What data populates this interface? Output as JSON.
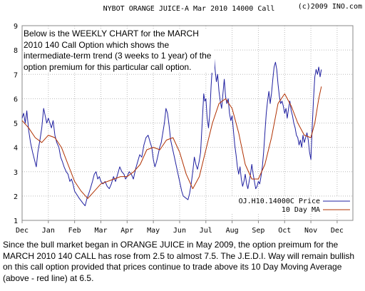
{
  "header": {
    "title": "NYBOT ORANGE JUICE-A Mar 2010 14000 Call",
    "copyright": "(c)2009 INO.com"
  },
  "overlay_note": "Below is the WEEKLY CHART for the MARCH 2010 140 Call Option which shows the intermediate-term trend (3 weeks to 1 year) of the option premium for this particular call option.",
  "caption": "Since the bull market began in ORANGE JUICE in May 2009, the option preimum for the MARCH 2010 140 CALL has rose from 2.5 to almost 7.5. The J.E.D.I. Way will remain bullish on this call option provided that prices continue to trade above its 10 Day Moving Average (above - red line) at 6.5.",
  "colors": {
    "price": "#2020a0",
    "ma": "#b03000",
    "grid": "#bbbbbb",
    "axis": "#888888"
  },
  "chart_data": {
    "type": "line",
    "x_tick_labels": [
      "Dec",
      "Jan",
      "Feb",
      "Mar",
      "Apr",
      "May",
      "Jun",
      "Jul",
      "Aug",
      "Sep",
      "Oct",
      "Nov",
      "Dec"
    ],
    "y_ticks": [
      1,
      2,
      3,
      4,
      5,
      6,
      7,
      8,
      9
    ],
    "ylim": [
      1,
      9
    ],
    "xlim": [
      0,
      12.6
    ],
    "grid": true,
    "legend_position": "bottom-right",
    "series": [
      {
        "name": "OJ.H10.14000C Price",
        "role": "price",
        "points": [
          [
            0.0,
            5.2
          ],
          [
            0.06,
            5.4
          ],
          [
            0.12,
            5.0
          ],
          [
            0.18,
            5.5
          ],
          [
            0.25,
            4.7
          ],
          [
            0.32,
            4.2
          ],
          [
            0.4,
            3.8
          ],
          [
            0.47,
            3.5
          ],
          [
            0.54,
            3.2
          ],
          [
            0.6,
            3.8
          ],
          [
            0.68,
            4.3
          ],
          [
            0.75,
            4.8
          ],
          [
            0.82,
            5.6
          ],
          [
            0.88,
            5.3
          ],
          [
            0.94,
            5.0
          ],
          [
            1.0,
            5.2
          ],
          [
            1.06,
            5.0
          ],
          [
            1.12,
            4.8
          ],
          [
            1.18,
            5.1
          ],
          [
            1.25,
            4.5
          ],
          [
            1.32,
            4.2
          ],
          [
            1.4,
            4.0
          ],
          [
            1.47,
            3.6
          ],
          [
            1.54,
            3.4
          ],
          [
            1.6,
            3.2
          ],
          [
            1.68,
            3.0
          ],
          [
            1.75,
            2.9
          ],
          [
            1.82,
            2.6
          ],
          [
            1.88,
            2.7
          ],
          [
            1.94,
            2.5
          ],
          [
            2.0,
            2.2
          ],
          [
            2.06,
            2.1
          ],
          [
            2.12,
            2.0
          ],
          [
            2.18,
            1.9
          ],
          [
            2.25,
            1.8
          ],
          [
            2.32,
            1.7
          ],
          [
            2.4,
            1.6
          ],
          [
            2.47,
            1.9
          ],
          [
            2.54,
            2.1
          ],
          [
            2.6,
            2.3
          ],
          [
            2.68,
            2.6
          ],
          [
            2.75,
            2.9
          ],
          [
            2.82,
            3.0
          ],
          [
            2.88,
            2.7
          ],
          [
            2.94,
            2.8
          ],
          [
            3.0,
            2.6
          ],
          [
            3.08,
            2.5
          ],
          [
            3.16,
            2.6
          ],
          [
            3.24,
            2.4
          ],
          [
            3.32,
            2.3
          ],
          [
            3.4,
            2.5
          ],
          [
            3.48,
            2.8
          ],
          [
            3.56,
            2.6
          ],
          [
            3.64,
            2.9
          ],
          [
            3.72,
            3.2
          ],
          [
            3.8,
            3.0
          ],
          [
            3.88,
            2.9
          ],
          [
            3.94,
            2.7
          ],
          [
            4.0,
            2.8
          ],
          [
            4.08,
            3.0
          ],
          [
            4.16,
            2.9
          ],
          [
            4.24,
            2.7
          ],
          [
            4.32,
            3.1
          ],
          [
            4.4,
            3.4
          ],
          [
            4.48,
            3.7
          ],
          [
            4.56,
            3.6
          ],
          [
            4.64,
            4.1
          ],
          [
            4.72,
            4.4
          ],
          [
            4.8,
            4.5
          ],
          [
            4.88,
            4.2
          ],
          [
            4.94,
            4.0
          ],
          [
            5.0,
            3.5
          ],
          [
            5.06,
            3.2
          ],
          [
            5.12,
            3.4
          ],
          [
            5.18,
            3.7
          ],
          [
            5.24,
            4.0
          ],
          [
            5.3,
            4.2
          ],
          [
            5.36,
            4.6
          ],
          [
            5.42,
            5.0
          ],
          [
            5.48,
            5.6
          ],
          [
            5.54,
            5.4
          ],
          [
            5.6,
            4.9
          ],
          [
            5.66,
            4.3
          ],
          [
            5.72,
            4.0
          ],
          [
            5.78,
            3.7
          ],
          [
            5.84,
            3.4
          ],
          [
            5.9,
            3.1
          ],
          [
            5.96,
            2.8
          ],
          [
            6.02,
            2.5
          ],
          [
            6.08,
            2.2
          ],
          [
            6.14,
            2.0
          ],
          [
            6.2,
            1.95
          ],
          [
            6.26,
            1.9
          ],
          [
            6.32,
            1.85
          ],
          [
            6.38,
            2.1
          ],
          [
            6.44,
            2.5
          ],
          [
            6.5,
            3.0
          ],
          [
            6.56,
            3.6
          ],
          [
            6.62,
            3.3
          ],
          [
            6.68,
            3.1
          ],
          [
            6.74,
            3.4
          ],
          [
            6.8,
            3.8
          ],
          [
            6.86,
            5.0
          ],
          [
            6.92,
            6.2
          ],
          [
            6.96,
            5.9
          ],
          [
            7.0,
            6.0
          ],
          [
            7.05,
            5.2
          ],
          [
            7.1,
            4.8
          ],
          [
            7.15,
            5.4
          ],
          [
            7.2,
            6.5
          ],
          [
            7.25,
            7.4
          ],
          [
            7.3,
            7.9
          ],
          [
            7.35,
            7.2
          ],
          [
            7.4,
            6.7
          ],
          [
            7.45,
            7.0
          ],
          [
            7.5,
            6.3
          ],
          [
            7.55,
            5.9
          ],
          [
            7.6,
            5.6
          ],
          [
            7.65,
            6.2
          ],
          [
            7.7,
            6.8
          ],
          [
            7.75,
            6.1
          ],
          [
            7.8,
            5.8
          ],
          [
            7.85,
            6.0
          ],
          [
            7.9,
            5.4
          ],
          [
            7.95,
            5.1
          ],
          [
            8.0,
            5.3
          ],
          [
            8.05,
            4.7
          ],
          [
            8.1,
            4.1
          ],
          [
            8.15,
            3.7
          ],
          [
            8.2,
            3.2
          ],
          [
            8.25,
            2.9
          ],
          [
            8.3,
            3.2
          ],
          [
            8.35,
            2.7
          ],
          [
            8.4,
            2.4
          ],
          [
            8.45,
            2.6
          ],
          [
            8.5,
            2.9
          ],
          [
            8.55,
            2.5
          ],
          [
            8.6,
            2.3
          ],
          [
            8.65,
            2.6
          ],
          [
            8.7,
            2.9
          ],
          [
            8.75,
            3.3
          ],
          [
            8.8,
            2.9
          ],
          [
            8.85,
            2.6
          ],
          [
            8.9,
            2.3
          ],
          [
            8.95,
            2.4
          ],
          [
            9.0,
            2.6
          ],
          [
            9.05,
            2.5
          ],
          [
            9.1,
            2.8
          ],
          [
            9.15,
            3.2
          ],
          [
            9.2,
            3.8
          ],
          [
            9.25,
            4.6
          ],
          [
            9.3,
            5.4
          ],
          [
            9.35,
            5.9
          ],
          [
            9.4,
            6.3
          ],
          [
            9.45,
            5.8
          ],
          [
            9.5,
            6.2
          ],
          [
            9.55,
            6.8
          ],
          [
            9.6,
            7.3
          ],
          [
            9.65,
            7.5
          ],
          [
            9.7,
            7.2
          ],
          [
            9.75,
            6.6
          ],
          [
            9.8,
            6.1
          ],
          [
            9.85,
            5.8
          ],
          [
            9.9,
            5.9
          ],
          [
            9.95,
            5.7
          ],
          [
            10.0,
            5.4
          ],
          [
            10.05,
            5.6
          ],
          [
            10.1,
            5.2
          ],
          [
            10.15,
            5.6
          ],
          [
            10.2,
            5.9
          ],
          [
            10.25,
            5.5
          ],
          [
            10.3,
            5.3
          ],
          [
            10.35,
            5.0
          ],
          [
            10.4,
            4.8
          ],
          [
            10.45,
            4.5
          ],
          [
            10.5,
            4.4
          ],
          [
            10.55,
            4.1
          ],
          [
            10.6,
            4.3
          ],
          [
            10.65,
            4.0
          ],
          [
            10.7,
            4.5
          ],
          [
            10.75,
            4.2
          ],
          [
            10.8,
            4.4
          ],
          [
            10.85,
            4.6
          ],
          [
            10.9,
            4.3
          ],
          [
            10.95,
            3.8
          ],
          [
            11.0,
            3.5
          ],
          [
            11.05,
            4.8
          ],
          [
            11.1,
            6.0
          ],
          [
            11.15,
            6.9
          ],
          [
            11.2,
            7.2
          ],
          [
            11.25,
            7.0
          ],
          [
            11.3,
            7.3
          ],
          [
            11.35,
            6.9
          ],
          [
            11.4,
            7.2
          ]
        ]
      },
      {
        "name": "10 Day MA",
        "role": "ma",
        "points": [
          [
            0.0,
            5.1
          ],
          [
            0.25,
            4.8
          ],
          [
            0.5,
            4.4
          ],
          [
            0.75,
            4.2
          ],
          [
            1.0,
            4.5
          ],
          [
            1.25,
            4.4
          ],
          [
            1.5,
            4.0
          ],
          [
            1.75,
            3.3
          ],
          [
            2.0,
            2.6
          ],
          [
            2.25,
            2.2
          ],
          [
            2.5,
            1.9
          ],
          [
            2.75,
            2.2
          ],
          [
            3.0,
            2.5
          ],
          [
            3.25,
            2.6
          ],
          [
            3.5,
            2.7
          ],
          [
            3.75,
            2.8
          ],
          [
            4.0,
            2.8
          ],
          [
            4.25,
            3.0
          ],
          [
            4.5,
            3.3
          ],
          [
            4.75,
            3.9
          ],
          [
            5.0,
            4.0
          ],
          [
            5.25,
            3.9
          ],
          [
            5.5,
            4.3
          ],
          [
            5.75,
            4.4
          ],
          [
            6.0,
            3.8
          ],
          [
            6.25,
            2.9
          ],
          [
            6.5,
            2.3
          ],
          [
            6.75,
            2.8
          ],
          [
            7.0,
            3.9
          ],
          [
            7.25,
            5.0
          ],
          [
            7.5,
            5.8
          ],
          [
            7.75,
            6.0
          ],
          [
            8.0,
            5.6
          ],
          [
            8.25,
            4.6
          ],
          [
            8.5,
            3.3
          ],
          [
            8.75,
            2.7
          ],
          [
            9.0,
            2.7
          ],
          [
            9.25,
            3.3
          ],
          [
            9.5,
            4.4
          ],
          [
            9.75,
            5.8
          ],
          [
            10.0,
            6.2
          ],
          [
            10.25,
            5.7
          ],
          [
            10.5,
            5.0
          ],
          [
            10.75,
            4.5
          ],
          [
            11.0,
            4.4
          ],
          [
            11.15,
            5.0
          ],
          [
            11.3,
            6.0
          ],
          [
            11.4,
            6.5
          ]
        ]
      }
    ]
  }
}
